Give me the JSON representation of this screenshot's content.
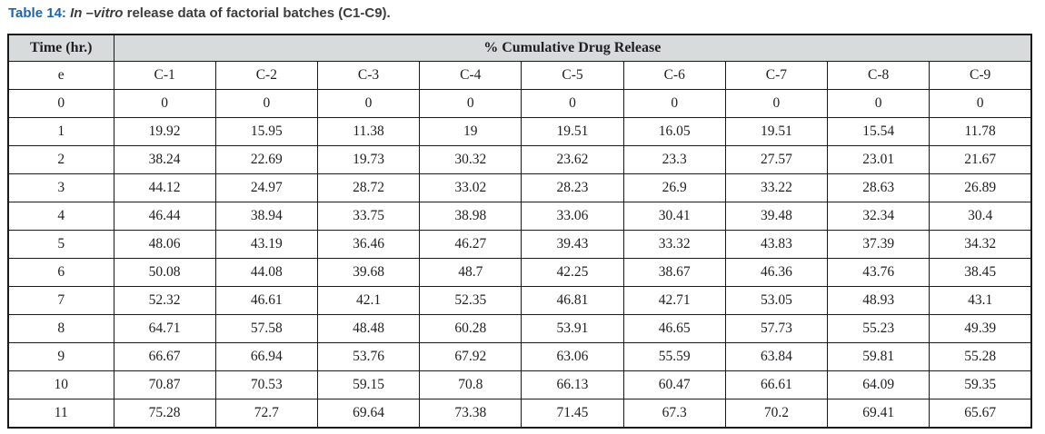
{
  "title": {
    "prefix": "Table 14: ",
    "italic": "In –vitro",
    "rest": " release data of factorial batches (C1-C9)."
  },
  "table": {
    "time_header": "Time (hr.)",
    "group_header": "% Cumulative Drug Release",
    "batch_row": {
      "time": "e",
      "cells": [
        "C-1",
        "C-2",
        "C-3",
        "C-4",
        "C-5",
        "C-6",
        "C-7",
        "C-8",
        "C-9"
      ]
    },
    "rows": [
      {
        "time": "0",
        "cells": [
          "0",
          "0",
          "0",
          "0",
          "0",
          "0",
          "0",
          "0",
          "0"
        ]
      },
      {
        "time": "1",
        "cells": [
          "19.92",
          "15.95",
          "11.38",
          "19",
          "19.51",
          "16.05",
          "19.51",
          "15.54",
          "11.78"
        ]
      },
      {
        "time": "2",
        "cells": [
          "38.24",
          "22.69",
          "19.73",
          "30.32",
          "23.62",
          "23.3",
          "27.57",
          "23.01",
          "21.67"
        ]
      },
      {
        "time": "3",
        "cells": [
          "44.12",
          "24.97",
          "28.72",
          "33.02",
          "28.23",
          "26.9",
          "33.22",
          "28.63",
          "26.89"
        ]
      },
      {
        "time": "4",
        "cells": [
          "46.44",
          "38.94",
          "33.75",
          "38.98",
          "33.06",
          "30.41",
          "39.48",
          "32.34",
          "30.4"
        ]
      },
      {
        "time": "5",
        "cells": [
          "48.06",
          "43.19",
          "36.46",
          "46.27",
          "39.43",
          "33.32",
          "43.83",
          "37.39",
          "34.32"
        ]
      },
      {
        "time": "6",
        "cells": [
          "50.08",
          "44.08",
          "39.68",
          "48.7",
          "42.25",
          "38.67",
          "46.36",
          "43.76",
          "38.45"
        ]
      },
      {
        "time": "7",
        "cells": [
          "52.32",
          "46.61",
          "42.1",
          "52.35",
          "46.81",
          "42.71",
          "53.05",
          "48.93",
          "43.1"
        ]
      },
      {
        "time": "8",
        "cells": [
          "64.71",
          "57.58",
          "48.48",
          "60.28",
          "53.91",
          "46.65",
          "57.73",
          "55.23",
          "49.39"
        ]
      },
      {
        "time": "9",
        "cells": [
          "66.67",
          "66.94",
          "53.76",
          "67.92",
          "63.06",
          "55.59",
          "63.84",
          "59.81",
          "55.28"
        ]
      },
      {
        "time": "10",
        "cells": [
          "70.87",
          "70.53",
          "59.15",
          "70.8",
          "66.13",
          "60.47",
          "66.61",
          "64.09",
          "59.35"
        ]
      },
      {
        "time": "11",
        "cells": [
          "75.28",
          "72.7",
          "69.64",
          "73.38",
          "71.45",
          "67.3",
          "70.2",
          "69.41",
          "65.67"
        ]
      }
    ]
  },
  "colors": {
    "title_accent": "#1f63ae",
    "header_bg": "#d8dbdb",
    "border": "#1a1a1a",
    "text": "#1f1f23"
  }
}
